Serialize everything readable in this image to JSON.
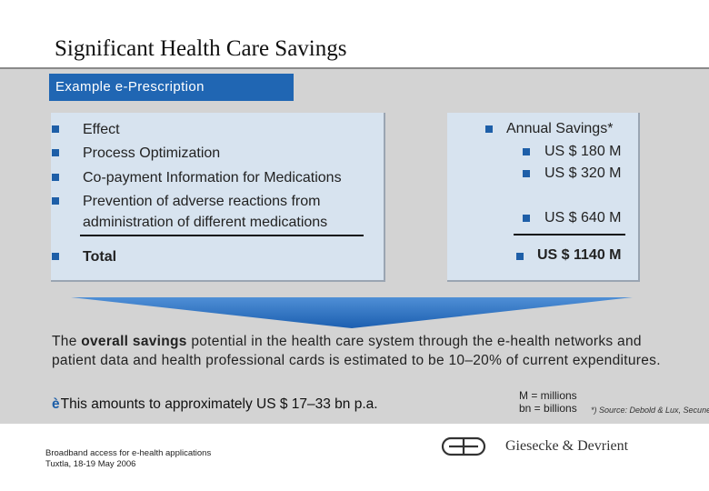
{
  "header": {
    "title": "Significant Health Care Savings",
    "tag": "Example e-Prescription"
  },
  "left_panel": {
    "items": [
      {
        "label": "Effect"
      },
      {
        "label": "Process Optimization"
      },
      {
        "label": "Co-payment Information for Medications"
      },
      {
        "label_line1": "Prevention of adverse reactions from",
        "label_line2": "administration of different medications"
      }
    ],
    "total_label": "Total"
  },
  "right_panel": {
    "heading": "Annual Savings*",
    "values": [
      "US $ 180 M",
      "US $ 320 M",
      "US $ 640 M"
    ],
    "total_value": "US $ 1140 M"
  },
  "summary": {
    "text_before": "The ",
    "text_bold": "overall savings",
    "text_after": " potential in the health care system through the e-health networks and patient data and health professional cards is estimated to be 10–20% of current expenditures.",
    "conclusion_arrow": "è",
    "conclusion": "This amounts to approximately US $ 17–33 bn p.a.",
    "legend_line1": "M = millions",
    "legend_line2": "bn = billions",
    "source": "*) Source: Debold & Lux, Secunet"
  },
  "footer": {
    "line1": "Broadband access for e-health applications",
    "line2": "Tuxtla, 18-19 May 2006",
    "company": "Giesecke & Devrient"
  },
  "colors": {
    "accent": "#2066b3",
    "bullet": "#1e5fa8",
    "panel": "#d7e3ef",
    "background": "#d3d3d3"
  }
}
